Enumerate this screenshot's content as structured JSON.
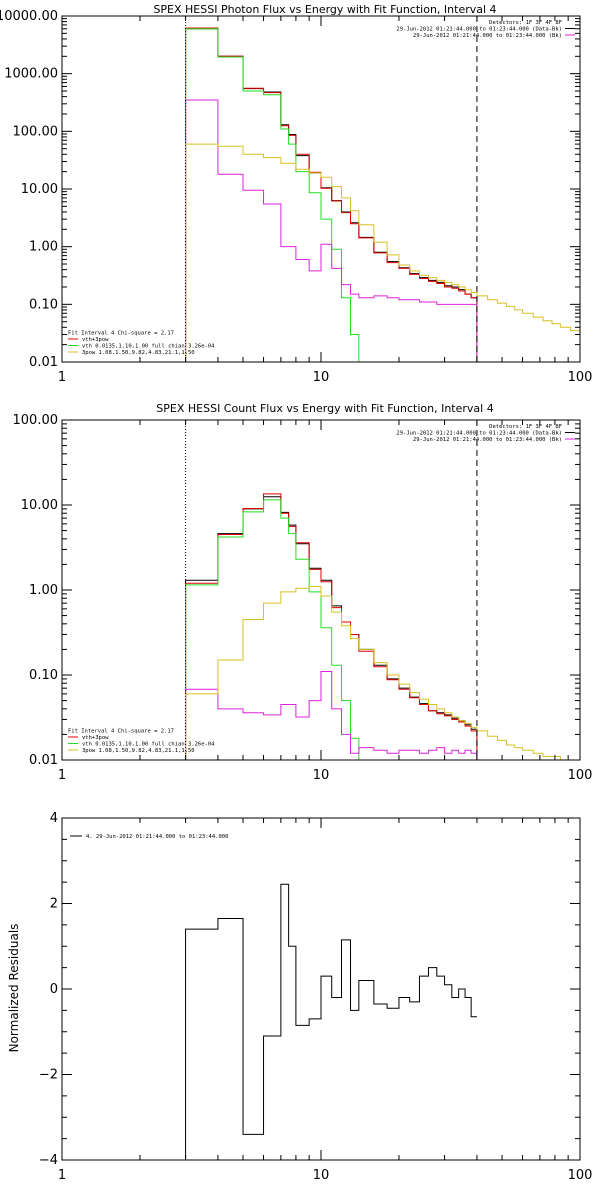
{
  "colors": {
    "black": "#000000",
    "red": "#e00000",
    "green": "#22dd22",
    "magenta": "#dd22dd",
    "yellow": "#d8c020",
    "background": "#ffffff"
  },
  "chart_data": [
    {
      "type": "line",
      "title": "SPEX HESSI Photon Flux vs Energy with Fit Function, Interval 4",
      "xscale": "log",
      "yscale": "log",
      "xlim": [
        1,
        100
      ],
      "ylim": [
        0.01,
        10000
      ],
      "xticks": [
        1,
        10,
        100
      ],
      "xtick_labels": [
        "1",
        "10",
        "100"
      ],
      "yticks": [
        0.01,
        0.1,
        1,
        10,
        100,
        1000,
        10000
      ],
      "ytick_labels": [
        "0.01",
        "0.10",
        "1.00",
        "10.00",
        "100.00",
        "1000.00",
        "10000.00"
      ],
      "vlines": [
        {
          "x": 3.0,
          "style": "dotted"
        },
        {
          "x": 40.0,
          "style": "dashed"
        }
      ],
      "legend_top": {
        "placement": "top-right",
        "lines": [
          {
            "text": "Detectors: 1F 3F 4F 8F",
            "color": ""
          },
          {
            "text": "29-Jun-2012 01:21:44.000 to 01:23:44.000 (Data-Bk)",
            "color": "#000000"
          },
          {
            "text": "29-Jun-2012 01:21:44.000 to 01:23:44.000 (Bk)",
            "color": "#dd22dd"
          }
        ]
      },
      "legend_bottom": {
        "placement": "bottom-left",
        "lines": [
          {
            "text": "Fit Interval 4   Chi-square = 2.17",
            "color": ""
          },
          {
            "text": "vth+3pow",
            "color": "#e00000"
          },
          {
            "text": "vth 0.0135,1.10,1.00  full chian 3.26e-04",
            "color": "#22dd22"
          },
          {
            "text": "3pow 1.08,1.50,9.82,4.83,21.1,1.50",
            "color": "#d8c020"
          }
        ]
      },
      "series": [
        {
          "color": "#000000",
          "edges": [
            3,
            4,
            5,
            6,
            7,
            7.5,
            8,
            9,
            10,
            11,
            12,
            13,
            14,
            16,
            18,
            20,
            22,
            24,
            26,
            28,
            30,
            32,
            34,
            36,
            38,
            40
          ],
          "values": [
            6000,
            2000,
            550,
            480,
            130,
            88,
            38,
            19,
            10.5,
            6.3,
            4.0,
            2.6,
            1.45,
            0.8,
            0.55,
            0.43,
            0.34,
            0.29,
            0.26,
            0.24,
            0.21,
            0.2,
            0.18,
            0.15,
            0.13
          ]
        },
        {
          "color": "#e00000",
          "edges": [
            3,
            4,
            5,
            6,
            7,
            7.5,
            8,
            9,
            10,
            11,
            12,
            13,
            14,
            16,
            18,
            20,
            22,
            24,
            26,
            28,
            30,
            32,
            34,
            36,
            38,
            40
          ],
          "values": [
            6200,
            2000,
            560,
            470,
            125,
            85,
            40,
            19.5,
            10.3,
            6.2,
            3.9,
            2.5,
            1.42,
            0.78,
            0.53,
            0.42,
            0.33,
            0.28,
            0.25,
            0.23,
            0.2,
            0.19,
            0.17,
            0.15,
            0.13
          ]
        },
        {
          "color": "#22dd22",
          "edges": [
            3,
            4,
            5,
            6,
            7,
            7.5,
            8,
            9,
            10,
            11,
            12,
            13,
            14,
            16
          ],
          "values": [
            6000,
            1950,
            500,
            430,
            110,
            60,
            20,
            8.6,
            3.0,
            0.9,
            0.13,
            0.03,
            0.01
          ]
        },
        {
          "color": "#dd22dd",
          "edges": [
            3,
            4,
            5,
            6,
            7,
            8,
            9,
            10,
            11,
            12,
            13,
            14,
            16,
            18,
            20,
            22,
            24,
            26,
            28,
            30,
            32,
            34,
            36,
            38,
            40
          ],
          "values": [
            350,
            18,
            9.5,
            5.5,
            1.0,
            0.6,
            0.38,
            1.1,
            0.42,
            0.22,
            0.15,
            0.13,
            0.14,
            0.13,
            0.12,
            0.12,
            0.11,
            0.11,
            0.1,
            0.1,
            0.1,
            0.1,
            0.1,
            0.1
          ]
        },
        {
          "color": "#d8c020",
          "edges": [
            3,
            4,
            5,
            6,
            7,
            8,
            9,
            10,
            11,
            12,
            13,
            14,
            16,
            18,
            20,
            22,
            24,
            26,
            28,
            30,
            32,
            34,
            36,
            38,
            40,
            44,
            48,
            52,
            56,
            60,
            66,
            72,
            78,
            84,
            92,
            100
          ],
          "values": [
            60,
            55,
            40,
            35,
            28,
            22,
            19,
            16,
            11,
            7,
            4.2,
            2.4,
            1.2,
            0.72,
            0.48,
            0.38,
            0.32,
            0.29,
            0.26,
            0.24,
            0.22,
            0.2,
            0.18,
            0.16,
            0.14,
            0.12,
            0.105,
            0.092,
            0.08,
            0.07,
            0.06,
            0.052,
            0.046,
            0.04,
            0.035
          ]
        }
      ]
    },
    {
      "type": "line",
      "title": "SPEX HESSI Count Flux vs Energy with Fit Function, Interval 4",
      "xscale": "log",
      "yscale": "log",
      "xlim": [
        1,
        100
      ],
      "ylim": [
        0.01,
        100
      ],
      "xticks": [
        1,
        10,
        100
      ],
      "xtick_labels": [
        "1",
        "10",
        "100"
      ],
      "yticks": [
        0.01,
        0.1,
        1,
        10,
        100
      ],
      "ytick_labels": [
        "0.01",
        "0.10",
        "1.00",
        "10.00",
        "100.00"
      ],
      "vlines": [
        {
          "x": 3.0,
          "style": "dotted"
        },
        {
          "x": 40.0,
          "style": "dashed"
        }
      ],
      "legend_top": {
        "placement": "top-right",
        "lines": [
          {
            "text": "Detectors: 1F 3F 4F 8F",
            "color": ""
          },
          {
            "text": "29-Jun-2012 01:21:44.000 to 01:23:44.000 (Data-Bk)",
            "color": "#000000"
          },
          {
            "text": "29-Jun-2012 01:21:44.000 to 01:23:44.000 (Bk)",
            "color": "#dd22dd"
          }
        ]
      },
      "legend_bottom": {
        "placement": "bottom-left",
        "lines": [
          {
            "text": "Fit Interval 4   Chi-square = 2.17",
            "color": ""
          },
          {
            "text": "vth+3pow",
            "color": "#e00000"
          },
          {
            "text": "vth 0.0135,1.10,1.00  full chian 3.26e-04",
            "color": "#22dd22"
          },
          {
            "text": "3pow 1.08,1.50,9.82,4.83,21.1,1.50",
            "color": "#d8c020"
          }
        ]
      },
      "series": [
        {
          "color": "#000000",
          "edges": [
            3,
            4,
            5,
            6,
            7,
            7.5,
            8,
            9,
            10,
            11,
            12,
            13,
            14,
            16,
            18,
            20,
            22,
            24,
            26,
            28,
            30,
            32,
            34,
            36,
            38,
            40
          ],
          "values": [
            1.3,
            4.6,
            9.0,
            12.5,
            8.2,
            5.8,
            3.5,
            1.8,
            1.3,
            0.65,
            0.42,
            0.3,
            0.2,
            0.13,
            0.09,
            0.07,
            0.055,
            0.046,
            0.038,
            0.036,
            0.034,
            0.031,
            0.029,
            0.026,
            0.023
          ]
        },
        {
          "color": "#e00000",
          "edges": [
            3,
            4,
            5,
            6,
            7,
            7.5,
            8,
            9,
            10,
            11,
            12,
            13,
            14,
            16,
            18,
            20,
            22,
            24,
            26,
            28,
            30,
            32,
            34,
            36,
            38,
            40
          ],
          "values": [
            1.2,
            4.5,
            9.1,
            13.5,
            8.0,
            5.6,
            3.6,
            1.75,
            1.25,
            0.62,
            0.42,
            0.3,
            0.19,
            0.125,
            0.088,
            0.068,
            0.054,
            0.045,
            0.038,
            0.035,
            0.033,
            0.03,
            0.028,
            0.025,
            0.022
          ]
        },
        {
          "color": "#22dd22",
          "edges": [
            3,
            4,
            5,
            6,
            7,
            7.5,
            8,
            9,
            10,
            11,
            12,
            13,
            14,
            16
          ],
          "values": [
            1.15,
            4.2,
            8.3,
            11.5,
            7.0,
            4.6,
            2.3,
            0.95,
            0.36,
            0.13,
            0.05,
            0.018,
            0.01
          ]
        },
        {
          "color": "#dd22dd",
          "edges": [
            3,
            4,
            5,
            6,
            7,
            8,
            9,
            10,
            11,
            12,
            13,
            14,
            16,
            18,
            20,
            22,
            24,
            26,
            28,
            30,
            32,
            34,
            36,
            38,
            40
          ],
          "values": [
            0.068,
            0.04,
            0.036,
            0.034,
            0.045,
            0.032,
            0.05,
            0.11,
            0.04,
            0.02,
            0.012,
            0.014,
            0.013,
            0.012,
            0.013,
            0.013,
            0.012,
            0.013,
            0.014,
            0.012,
            0.013,
            0.012,
            0.013,
            0.012
          ]
        },
        {
          "color": "#d8c020",
          "edges": [
            3,
            4,
            5,
            6,
            7,
            8,
            9,
            10,
            11,
            12,
            13,
            14,
            16,
            18,
            20,
            22,
            24,
            26,
            28,
            30,
            32,
            34,
            36,
            38,
            40,
            44,
            48,
            52,
            56,
            60,
            66,
            72,
            78,
            84,
            92,
            100
          ],
          "values": [
            0.06,
            0.15,
            0.45,
            0.7,
            0.95,
            1.05,
            1.1,
            0.85,
            0.55,
            0.38,
            0.27,
            0.2,
            0.14,
            0.1,
            0.078,
            0.062,
            0.052,
            0.045,
            0.04,
            0.036,
            0.032,
            0.029,
            0.027,
            0.024,
            0.022,
            0.019,
            0.017,
            0.015,
            0.014,
            0.013,
            0.012,
            0.011,
            0.011,
            0.01,
            0.01
          ]
        }
      ]
    },
    {
      "type": "line",
      "title": "",
      "xscale": "log",
      "yscale": "linear",
      "xlim": [
        1,
        100
      ],
      "ylim": [
        -4,
        4
      ],
      "xticks": [
        1,
        10,
        100
      ],
      "xtick_labels": [
        "1",
        "10",
        "100"
      ],
      "yticks": [
        -4,
        -2,
        0,
        2,
        4
      ],
      "ytick_labels": [
        "−4",
        "−2",
        "0",
        "2",
        "4"
      ],
      "ylabel": "Normalized Residuals",
      "vlines": [],
      "legend_top": {
        "placement": "top-left",
        "lines": [
          {
            "text": "4. 29-Jun-2012 01:21:44.000 to 01:23:44.000",
            "color": "#000000"
          }
        ]
      },
      "series": [
        {
          "color": "#000000",
          "edges": [
            3,
            4,
            5,
            6,
            7,
            7.5,
            8,
            9,
            10,
            11,
            12,
            13,
            14,
            16,
            18,
            20,
            22,
            24,
            26,
            28,
            30,
            32,
            34,
            36,
            38,
            40
          ],
          "values": [
            1.4,
            1.65,
            -3.4,
            -1.1,
            2.45,
            1.0,
            -0.85,
            -0.7,
            0.3,
            -0.2,
            1.15,
            -0.5,
            0.2,
            -0.35,
            -0.45,
            -0.2,
            -0.3,
            0.3,
            0.5,
            0.3,
            0.1,
            -0.2,
            0.0,
            -0.2,
            -0.65
          ]
        }
      ]
    }
  ]
}
